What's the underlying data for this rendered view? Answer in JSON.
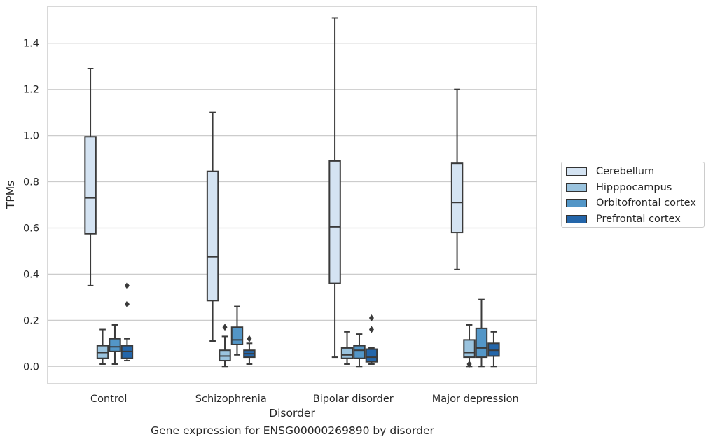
{
  "chart_data": {
    "type": "box",
    "title": "",
    "xlabel": "Disorder",
    "ylabel": "TPMs",
    "caption": "Gene expression for ENSG00000269890 by disorder",
    "categories": [
      "Control",
      "Schizophrenia",
      "Bipolar disorder",
      "Major depression"
    ],
    "ylim": [
      -0.075,
      1.56
    ],
    "yticks": [
      "0.0",
      "0.2",
      "0.4",
      "0.6",
      "0.8",
      "1.0",
      "1.2",
      "1.4"
    ],
    "grid": true,
    "legend_position": "right",
    "series": [
      {
        "name": "Cerebellum",
        "color": "#d4e3f2",
        "boxes": [
          {
            "whislo": 0.35,
            "q1": 0.575,
            "med": 0.73,
            "q3": 0.995,
            "whishi": 1.29,
            "fliers": []
          },
          {
            "whislo": 0.11,
            "q1": 0.285,
            "med": 0.475,
            "q3": 0.845,
            "whishi": 1.1,
            "fliers": []
          },
          {
            "whislo": 0.04,
            "q1": 0.36,
            "med": 0.605,
            "q3": 0.89,
            "whishi": 1.51,
            "fliers": []
          },
          {
            "whislo": 0.42,
            "q1": 0.58,
            "med": 0.71,
            "q3": 0.88,
            "whishi": 1.2,
            "fliers": []
          }
        ]
      },
      {
        "name": "Hipppocampus",
        "color": "#9ac3de",
        "boxes": [
          {
            "whislo": 0.01,
            "q1": 0.035,
            "med": 0.06,
            "q3": 0.09,
            "whishi": 0.16,
            "fliers": []
          },
          {
            "whislo": 0.0,
            "q1": 0.025,
            "med": 0.045,
            "q3": 0.07,
            "whishi": 0.13,
            "fliers": [
              0.17
            ]
          },
          {
            "whislo": 0.01,
            "q1": 0.035,
            "med": 0.05,
            "q3": 0.08,
            "whishi": 0.15,
            "fliers": []
          },
          {
            "whislo": 0.0,
            "q1": 0.04,
            "med": 0.06,
            "q3": 0.115,
            "whishi": 0.18,
            "fliers": [
              0.01
            ]
          }
        ]
      },
      {
        "name": "Orbitofrontal cortex",
        "color": "#5396c7",
        "boxes": [
          {
            "whislo": 0.01,
            "q1": 0.065,
            "med": 0.085,
            "q3": 0.12,
            "whishi": 0.18,
            "fliers": []
          },
          {
            "whislo": 0.05,
            "q1": 0.095,
            "med": 0.115,
            "q3": 0.17,
            "whishi": 0.26,
            "fliers": []
          },
          {
            "whislo": 0.0,
            "q1": 0.035,
            "med": 0.07,
            "q3": 0.09,
            "whishi": 0.14,
            "fliers": []
          },
          {
            "whislo": 0.0,
            "q1": 0.04,
            "med": 0.08,
            "q3": 0.165,
            "whishi": 0.29,
            "fliers": []
          }
        ]
      },
      {
        "name": "Prefrontal cortex",
        "color": "#2466aa",
        "boxes": [
          {
            "whislo": 0.025,
            "q1": 0.035,
            "med": 0.065,
            "q3": 0.09,
            "whishi": 0.12,
            "fliers": [
              0.27,
              0.35
            ]
          },
          {
            "whislo": 0.01,
            "q1": 0.04,
            "med": 0.055,
            "q3": 0.07,
            "whishi": 0.1,
            "fliers": [
              0.12
            ]
          },
          {
            "whislo": 0.01,
            "q1": 0.02,
            "med": 0.04,
            "q3": 0.075,
            "whishi": 0.08,
            "fliers": [
              0.16,
              0.21
            ]
          },
          {
            "whislo": 0.0,
            "q1": 0.045,
            "med": 0.07,
            "q3": 0.1,
            "whishi": 0.15,
            "fliers": []
          }
        ]
      }
    ]
  }
}
